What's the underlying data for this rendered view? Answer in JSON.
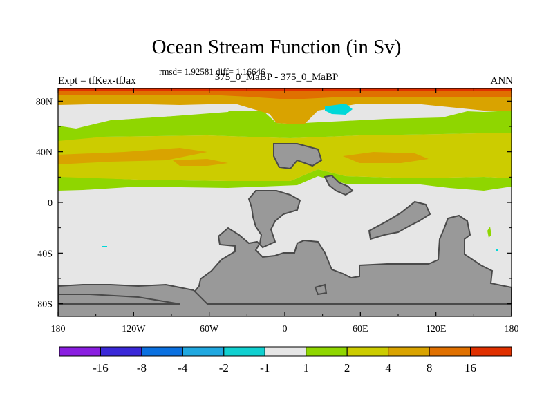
{
  "header": {
    "title": "Ocean Stream Function (in Sv)",
    "stats": "rmsd= 1.92581 diff= 1.16646",
    "left_label": "Expt = tfKex-tfJax",
    "center_label": "375_0_MaBP - 375_0_MaBP",
    "right_label": "ANN"
  },
  "colors": {
    "land": "#999999",
    "land_outline": "#4a4a4a",
    "ocean_neutral": "#e6e6e6",
    "light_green": "#8fd600",
    "yellow": "#cccc00",
    "gold": "#d9a300",
    "orange": "#e07000",
    "red_orange": "#e03000",
    "cyan": "#00d8d8"
  },
  "chart_data": {
    "type": "heatmap",
    "title": "Ocean Stream Function (in Sv)",
    "x_axis": {
      "range": [
        -180,
        180
      ],
      "ticks": [
        -180,
        -120,
        -60,
        0,
        60,
        120,
        180
      ],
      "tick_labels": [
        "180",
        "120W",
        "60W",
        "0",
        "60E",
        "120E",
        "180"
      ]
    },
    "y_axis": {
      "range": [
        -90,
        90
      ],
      "ticks": [
        80,
        40,
        0,
        -40,
        -80
      ],
      "tick_labels": [
        "80N",
        "40N",
        "0",
        "40S",
        "80S"
      ]
    },
    "colorbar": {
      "levels": [
        "-16",
        "-8",
        "-4",
        "-2",
        "-1",
        "1",
        "2",
        "4",
        "8",
        "16"
      ],
      "colors": [
        "#8a1ee0",
        "#3a28d8",
        "#0a70e0",
        "#20a8e0",
        "#10d0d0",
        "#e6e6e6",
        "#8fd600",
        "#cccc00",
        "#d9a300",
        "#e07000",
        "#e03000"
      ]
    },
    "field_bands_by_latitude": [
      {
        "lat_range": [
          85,
          90
        ],
        "category": "red_orange"
      },
      {
        "lat_range": [
          75,
          85
        ],
        "category": "gold"
      },
      {
        "lat_range": [
          58,
          75
        ],
        "category": "light_green_and_neutral"
      },
      {
        "lat_range": [
          46,
          58
        ],
        "category": "gold"
      },
      {
        "lat_range": [
          28,
          46
        ],
        "category": "yellow_with_gold_patches"
      },
      {
        "lat_range": [
          12,
          28
        ],
        "category": "light_green"
      },
      {
        "lat_range": [
          -90,
          12
        ],
        "category": "neutral"
      }
    ]
  }
}
